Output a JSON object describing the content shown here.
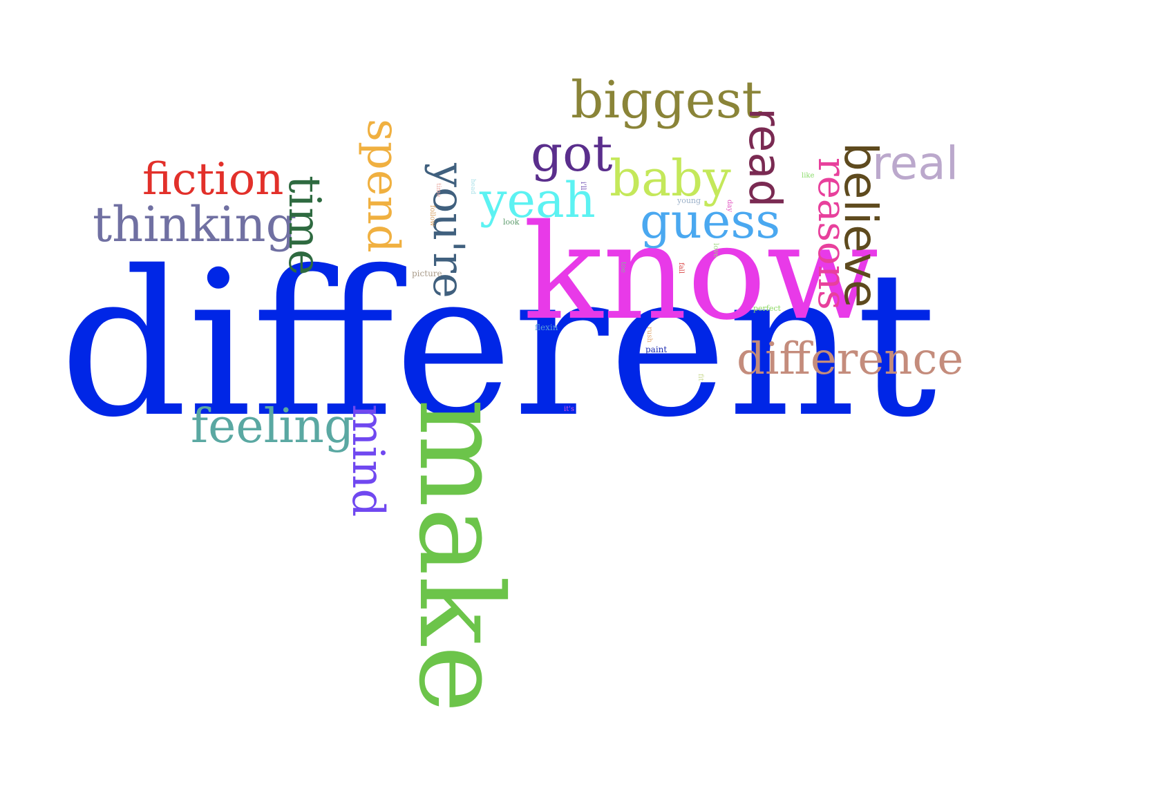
{
  "words": [
    {
      "key": "different",
      "text": "different",
      "color": "#0026e6",
      "rotated": false
    },
    {
      "key": "make",
      "text": "make",
      "color": "#6cc44a",
      "rotated": true
    },
    {
      "key": "know",
      "text": "know",
      "color": "#e83ae8",
      "rotated": false
    },
    {
      "key": "biggest",
      "text": "biggest",
      "color": "#8a8438",
      "rotated": false
    },
    {
      "key": "read",
      "text": "read",
      "color": "#7a2a52",
      "rotated": true
    },
    {
      "key": "believe",
      "text": "believe",
      "color": "#5e4a1e",
      "rotated": true
    },
    {
      "key": "real",
      "text": "real",
      "color": "#bba8cc",
      "rotated": false
    },
    {
      "key": "reasons",
      "text": "reasons",
      "color": "#e8409c",
      "rotated": true
    },
    {
      "key": "got",
      "text": "got",
      "color": "#5a2e8c",
      "rotated": false
    },
    {
      "key": "baby",
      "text": "baby",
      "color": "#c4e85a",
      "rotated": false
    },
    {
      "key": "yeah",
      "text": "yeah",
      "color": "#5cf2f2",
      "rotated": false
    },
    {
      "key": "guess",
      "text": "guess",
      "color": "#4aa8f0",
      "rotated": false
    },
    {
      "key": "spend",
      "text": "spend",
      "color": "#f0b040",
      "rotated": true
    },
    {
      "key": "youre",
      "text": "you're",
      "color": "#40607e",
      "rotated": true
    },
    {
      "key": "fiction",
      "text": "fiction",
      "color": "#e2302a",
      "rotated": false
    },
    {
      "key": "thinking",
      "text": "thinking",
      "color": "#7070a2",
      "rotated": false
    },
    {
      "key": "time",
      "text": "time",
      "color": "#2e6a40",
      "rotated": true
    },
    {
      "key": "difference",
      "text": "difference",
      "color": "#c48c7c",
      "rotated": false
    },
    {
      "key": "feeling",
      "text": "feeling",
      "color": "#5aa8a2",
      "rotated": false
    },
    {
      "key": "mind",
      "text": "mind",
      "color": "#7048f0",
      "rotated": true
    },
    {
      "key": "picture",
      "text": "picture",
      "color": "#a89a88",
      "rotated": false
    },
    {
      "key": "flexin",
      "text": "flexin",
      "color": "#5aa0d8",
      "rotated": false
    },
    {
      "key": "paint",
      "text": "paint",
      "color": "#1a2ab0",
      "rotated": false
    },
    {
      "key": "perfect",
      "text": "perfect",
      "color": "#8ad860",
      "rotated": false
    },
    {
      "key": "like",
      "text": "like",
      "color": "#8adc6a",
      "rotated": false
    },
    {
      "key": "young",
      "text": "young",
      "color": "#9ab0c8",
      "rotated": false
    },
    {
      "key": "look",
      "text": "look",
      "color": "#5a9a6a",
      "rotated": false
    },
    {
      "key": "its",
      "text": "it's",
      "color": "#e050e0",
      "rotated": false
    },
    {
      "key": "ill",
      "text": "i'll",
      "color": "#6a4ab0",
      "rotated": true
    },
    {
      "key": "day",
      "text": "day",
      "color": "#e050c0",
      "rotated": true
    },
    {
      "key": "love",
      "text": "love",
      "color": "#a0d880",
      "rotated": true
    },
    {
      "key": "toe",
      "text": "toe",
      "color": "#90a8a0",
      "rotated": true
    },
    {
      "key": "fall",
      "text": "fall",
      "color": "#d84040",
      "rotated": true
    },
    {
      "key": "rush",
      "text": "rush",
      "color": "#e0a870",
      "rotated": true
    },
    {
      "key": "fit",
      "text": "fit",
      "color": "#c8d890",
      "rotated": true
    },
    {
      "key": "times",
      "text": "time",
      "color": "#e8a8a0",
      "rotated": true
    },
    {
      "key": "follow",
      "text": "follow",
      "color": "#d8a060",
      "rotated": true
    },
    {
      "key": "head",
      "text": "head",
      "color": "#a8e0e8",
      "rotated": true
    }
  ]
}
